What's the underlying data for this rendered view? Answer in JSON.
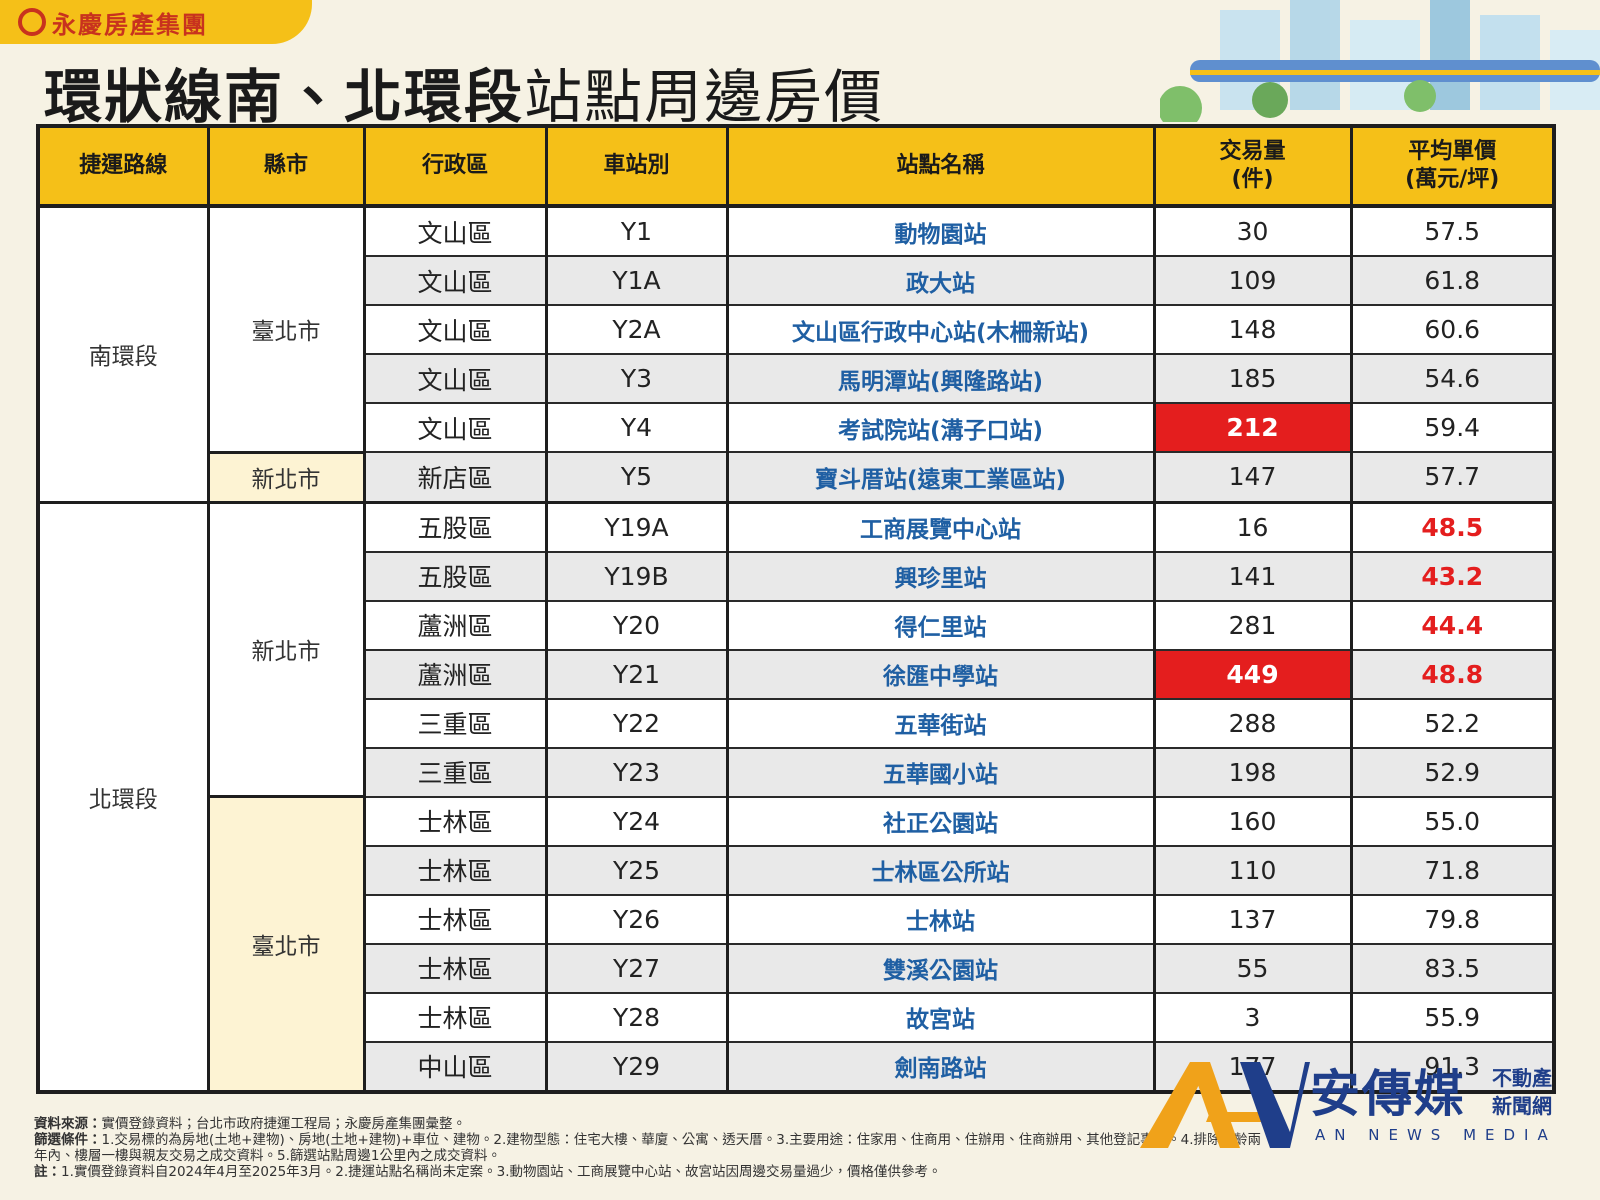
{
  "header": {
    "logo": "永慶房產集團",
    "title_bold": "環狀線南、北環段",
    "title_light": "站點周邊房價"
  },
  "table": {
    "columns": [
      "捷運路線",
      "縣市",
      "行政區",
      "車站別",
      "站點名稱",
      [
        "交易量",
        "(件)"
      ],
      [
        "平均單價",
        "(萬元/坪)"
      ]
    ],
    "sections": [
      {
        "route": "南環段",
        "cities": [
          {
            "city": "臺北市",
            "rows": [
              {
                "district": "文山區",
                "station": "Y1",
                "name": "動物園站",
                "volume": "30",
                "price": "57.5"
              },
              {
                "district": "文山區",
                "station": "Y1A",
                "name": "政大站",
                "volume": "109",
                "price": "61.8"
              },
              {
                "district": "文山區",
                "station": "Y2A",
                "name": "文山區行政中心站(木柵新站)",
                "volume": "148",
                "price": "60.6"
              },
              {
                "district": "文山區",
                "station": "Y3",
                "name": "馬明潭站(興隆路站)",
                "volume": "185",
                "price": "54.6"
              },
              {
                "district": "文山區",
                "station": "Y4",
                "name": "考試院站(溝子口站)",
                "volume": "212",
                "price": "59.4",
                "volume_highlight": true
              }
            ]
          },
          {
            "city": "新北市",
            "rows": [
              {
                "district": "新店區",
                "station": "Y5",
                "name": "寶斗厝站(遠東工業區站)",
                "volume": "147",
                "price": "57.7"
              }
            ]
          }
        ]
      },
      {
        "route": "北環段",
        "cities": [
          {
            "city": "新北市",
            "rows": [
              {
                "district": "五股區",
                "station": "Y19A",
                "name": "工商展覽中心站",
                "volume": "16",
                "price": "48.5",
                "price_highlight": true
              },
              {
                "district": "五股區",
                "station": "Y19B",
                "name": "興珍里站",
                "volume": "141",
                "price": "43.2",
                "price_highlight": true
              },
              {
                "district": "蘆洲區",
                "station": "Y20",
                "name": "得仁里站",
                "volume": "281",
                "price": "44.4",
                "price_highlight": true
              },
              {
                "district": "蘆洲區",
                "station": "Y21",
                "name": "徐匯中學站",
                "volume": "449",
                "price": "48.8",
                "volume_highlight": true,
                "price_highlight": true
              },
              {
                "district": "三重區",
                "station": "Y22",
                "name": "五華街站",
                "volume": "288",
                "price": "52.2"
              },
              {
                "district": "三重區",
                "station": "Y23",
                "name": "五華國小站",
                "volume": "198",
                "price": "52.9"
              }
            ]
          },
          {
            "city": "臺北市",
            "rows": [
              {
                "district": "士林區",
                "station": "Y24",
                "name": "社正公園站",
                "volume": "160",
                "price": "55.0"
              },
              {
                "district": "士林區",
                "station": "Y25",
                "name": "士林區公所站",
                "volume": "110",
                "price": "71.8"
              },
              {
                "district": "士林區",
                "station": "Y26",
                "name": "士林站",
                "volume": "137",
                "price": "79.8"
              },
              {
                "district": "士林區",
                "station": "Y27",
                "name": "雙溪公園站",
                "volume": "55",
                "price": "83.5"
              },
              {
                "district": "士林區",
                "station": "Y28",
                "name": "故宮站",
                "volume": "3",
                "price": "55.9"
              },
              {
                "district": "中山區",
                "station": "Y29",
                "name": "劍南路站",
                "volume": "177",
                "price": "91.3"
              }
            ]
          }
        ]
      }
    ]
  },
  "footnotes": [
    {
      "label": "資料來源：",
      "text": "實價登錄資料；台北市政府捷運工程局；永慶房產集團彙整。"
    },
    {
      "label": "篩選條件：",
      "text": "1.交易標的為房地(土地+建物)、房地(土地+建物)+車位、建物。2.建物型態：住宅大樓、華廈、公寓、透天厝。3.主要用途：住家用、住商用、住辦用、住商辦用、其他登記事項。4.排除屋齡兩年內、樓層一樓與親友交易之成交資料。5.篩選站點周邊1公里內之成交資料。"
    },
    {
      "label": "註：",
      "text": "1.實價登錄資料自2024年4月至2025年3月。2.捷運站點名稱尚未定案。3.動物園站、工商展覽中心站、故宮站因周邊交易量過少，價格僅供參考。"
    }
  ],
  "watermark": {
    "name": "安傳媒",
    "sub_top": "不動產",
    "sub_bottom": "新聞網",
    "english": "AN NEWS MEDIA"
  }
}
